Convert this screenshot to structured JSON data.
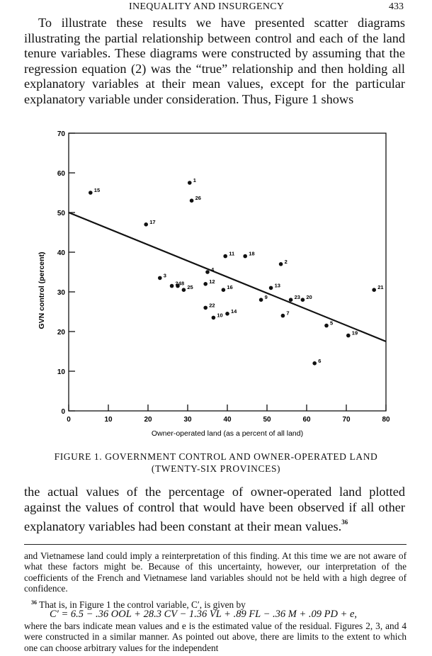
{
  "header": {
    "running_title": "INEQUALITY AND INSURGENCY",
    "page_number": "433"
  },
  "paragraph_top": "To illustrate these results we have presented scatter diagrams illustrating the partial relationship between control and each of the land tenure variables. These diagrams were constructed by assuming that the regression equation (2) was the “true” relationship and then holding all explanatory variables at their mean values, except for the particular explanatory variable under consideration. Thus, Figure 1 shows",
  "figure_caption": {
    "line1": "FIGURE 1. GOVERNMENT CONTROL AND OWNER-OPERATED LAND",
    "line2": "(TWENTY-SIX PROVINCES)"
  },
  "paragraph_bottom": "the actual values of the percentage of owner-operated land plotted against the values of control that would have been observed if all other explanatory variables had been constant at their mean values.",
  "paragraph_bottom_note": "36",
  "footnotes": {
    "continuation": "and Vietnamese land could imply a reinterpretation of this finding. At this time we are not aware of what these factors might be. Because of this uncertainty, however, our interpretation of the coefficients of the French and Vietnamese land variables should not be held with a high degree of confidence.",
    "note_number": "36",
    "note_text": "That is, in Figure 1 the control variable, C′, is given by",
    "equation": "C′ = 6.5 − .36 OOL + 28.3 CV − 1.36 VL + .89 FL − .36 M + .09 PD + e,",
    "after_equation": "where the bars indicate mean values and e is the estimated value of the residual. Figures 2, 3, and 4 were constructed in a similar manner. As pointed out above, there are limits to the extent to which one can choose arbitrary values for the independent"
  },
  "chart_data": {
    "type": "scatter",
    "xlabel": "Owner-operated land (as a percent of all land)",
    "ylabel": "GVN control (percent)",
    "xlim": [
      0,
      80
    ],
    "ylim": [
      0,
      70
    ],
    "x_ticks": [
      "0",
      "10",
      "20",
      "30",
      "40",
      "50",
      "60",
      "70",
      "80"
    ],
    "y_ticks": [
      "0",
      "10",
      "20",
      "30",
      "40",
      "50",
      "60",
      "70"
    ],
    "points": [
      {
        "label": "1",
        "x": 30.5,
        "y": 57.5
      },
      {
        "label": "2",
        "x": 53.5,
        "y": 37.0
      },
      {
        "label": "3",
        "x": 23.0,
        "y": 33.5
      },
      {
        "label": "4",
        "x": 35.0,
        "y": 35.0
      },
      {
        "label": "5",
        "x": 65.0,
        "y": 21.5
      },
      {
        "label": "6",
        "x": 62.0,
        "y": 12.0
      },
      {
        "label": "7",
        "x": 54.0,
        "y": 24.0
      },
      {
        "label": "8",
        "x": 27.5,
        "y": 31.5
      },
      {
        "label": "9",
        "x": 48.5,
        "y": 28.0
      },
      {
        "label": "10",
        "x": 36.5,
        "y": 23.5
      },
      {
        "label": "11",
        "x": 39.5,
        "y": 39.0
      },
      {
        "label": "12",
        "x": 34.5,
        "y": 32.0
      },
      {
        "label": "13",
        "x": 51.0,
        "y": 31.0
      },
      {
        "label": "14",
        "x": 40.0,
        "y": 24.5
      },
      {
        "label": "15",
        "x": 5.5,
        "y": 55.0
      },
      {
        "label": "16",
        "x": 39.0,
        "y": 30.5
      },
      {
        "label": "17",
        "x": 19.5,
        "y": 47.0
      },
      {
        "label": "18",
        "x": 44.5,
        "y": 39.0
      },
      {
        "label": "19",
        "x": 70.5,
        "y": 19.0
      },
      {
        "label": "20",
        "x": 59.0,
        "y": 28.0
      },
      {
        "label": "21",
        "x": 77.0,
        "y": 30.5
      },
      {
        "label": "22",
        "x": 34.5,
        "y": 26.0
      },
      {
        "label": "23",
        "x": 56.0,
        "y": 28.0
      },
      {
        "label": "24",
        "x": 26.0,
        "y": 31.5
      },
      {
        "label": "25",
        "x": 29.0,
        "y": 30.5
      },
      {
        "label": "26",
        "x": 31.0,
        "y": 53.0
      }
    ],
    "regression_line": {
      "x": [
        0,
        80
      ],
      "y": [
        50.0,
        17.5
      ]
    }
  }
}
